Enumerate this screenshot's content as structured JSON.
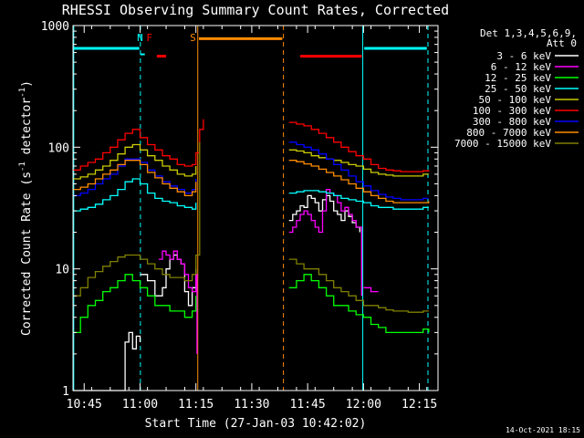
{
  "chart_data": {
    "type": "line",
    "title": "RHESSI Observing Summary Count Rates, Corrected",
    "xlabel": "Start Time (27-Jan-03 10:42:02)",
    "ylabel": "Corrected Count Rate (s⁻¹ detector⁻¹)",
    "ylabel_parts": [
      "Corrected Count Rate (s",
      "-1",
      " detector",
      "-1",
      ")"
    ],
    "y_scale": "log",
    "ylim": [
      1,
      1000
    ],
    "x_units": "minutes after 10:42:02",
    "xlim": [
      0,
      98
    ],
    "x_ticks": [
      {
        "value": 3,
        "label": "10:45"
      },
      {
        "value": 18,
        "label": "11:00"
      },
      {
        "value": 33,
        "label": "11:15"
      },
      {
        "value": 48,
        "label": "11:30"
      },
      {
        "value": 63,
        "label": "11:45"
      },
      {
        "value": 78,
        "label": "12:00"
      },
      {
        "value": 93,
        "label": "12:15"
      }
    ],
    "y_ticks": [
      {
        "value": 1,
        "label": "1"
      },
      {
        "value": 10,
        "label": "10"
      },
      {
        "value": 100,
        "label": "100"
      },
      {
        "value": 1000,
        "label": "1000"
      }
    ],
    "legend_header": [
      "Det 1,3,4,5,6,9,",
      "Att 0"
    ],
    "legend_placement": "right",
    "timestamp": "14-Oct-2021 18:15",
    "markers": [
      {
        "label": "N",
        "x": 18,
        "color": "#00ffff"
      },
      {
        "label": "F",
        "x": 20.5,
        "color": "#ff0000"
      },
      {
        "label": "S",
        "x": 32.2,
        "color": "#ff8c00"
      }
    ],
    "vertical_lines": [
      {
        "x": 0.2,
        "color": "#00ffff",
        "style": "solid"
      },
      {
        "x": 18.1,
        "color": "#00ffff",
        "style": "dashed"
      },
      {
        "x": 33.5,
        "color": "#ff8c00",
        "style": "solid"
      },
      {
        "x": 56.5,
        "color": "#ff8c00",
        "style": "dashed"
      },
      {
        "x": 77.8,
        "color": "#00ffff",
        "style": "solid"
      },
      {
        "x": 95.3,
        "color": "#00ffff",
        "style": "dashed"
      }
    ],
    "flag_bars": [
      {
        "x": [
          0.2,
          17.8
        ],
        "y": 650,
        "color": "#00ffff"
      },
      {
        "x": 18.3,
        "y": 580,
        "color": "#00ffff"
      },
      {
        "x": [
          22.5,
          25.0
        ],
        "y": 560,
        "color": "#ff0000"
      },
      {
        "x": [
          33.8,
          56.2
        ],
        "y": 780,
        "color": "#ff8c00"
      },
      {
        "x": [
          61.0,
          77.5
        ],
        "y": 560,
        "color": "#ff0000"
      },
      {
        "x": [
          78.2,
          95.0
        ],
        "y": 650,
        "color": "#00ffff"
      }
    ],
    "series": [
      {
        "name": "3 - 6 keV",
        "color": "#ffffff",
        "segments": [
          {
            "x": [
              0,
              13,
              14,
              15,
              16,
              17,
              18
            ],
            "y": [
              1,
              1,
              2.5,
              3,
              2.2,
              2.8,
              2.5
            ]
          },
          {
            "x": [
              18,
              20,
              22,
              24,
              25,
              26,
              27,
              28,
              29,
              30,
              31,
              32,
              33
            ],
            "y": [
              9,
              8,
              6,
              7,
              10,
              12,
              13,
              12,
              11,
              6.5,
              5,
              7,
              10
            ]
          },
          {
            "x": [
              58,
              59,
              60,
              61,
              62,
              63,
              64,
              65,
              66,
              67,
              68,
              69,
              70,
              71,
              72,
              73,
              74,
              75,
              76,
              77
            ],
            "y": [
              25,
              28,
              30,
              33,
              32,
              40,
              38,
              35,
              30,
              37,
              40,
              36,
              30,
              28,
              25,
              30,
              27,
              24,
              22,
              20
            ]
          }
        ]
      },
      {
        "name": "6 - 12 keV",
        "color": "#ff00ff",
        "segments": [
          {
            "x": [
              23,
              24,
              25,
              26,
              27,
              28,
              29,
              30,
              31,
              32,
              33,
              33.3
            ],
            "y": [
              12,
              14,
              13,
              12,
              14,
              12,
              11,
              9,
              7,
              6.5,
              9,
              2
            ]
          },
          {
            "x": [
              58,
              59,
              60,
              61,
              62,
              63,
              64,
              65,
              66,
              67,
              68,
              69,
              70,
              71,
              72,
              73,
              74,
              75,
              76,
              77,
              77.5
            ],
            "y": [
              20,
              22,
              25,
              28,
              30,
              28,
              25,
              22,
              20,
              30,
              45,
              42,
              40,
              35,
              30,
              32,
              28,
              25,
              22,
              22,
              6
            ]
          },
          {
            "x": [
              78,
              80,
              82
            ],
            "y": [
              7,
              6.5,
              6.5
            ]
          }
        ]
      },
      {
        "name": "12 - 25 keV",
        "color": "#00ff00",
        "segments": [
          {
            "x": [
              0,
              2,
              4,
              6,
              8,
              10,
              12,
              14,
              16,
              18,
              20,
              22,
              24,
              26,
              28,
              30,
              32,
              33
            ],
            "y": [
              3,
              4,
              5,
              5.5,
              6.5,
              7,
              8,
              9,
              8,
              7,
              6,
              5,
              5,
              4.5,
              4.5,
              4,
              4.5,
              6
            ]
          },
          {
            "x": [
              58,
              60,
              62,
              64,
              66,
              68,
              70,
              72,
              74,
              76,
              78,
              80,
              82,
              84,
              86,
              88,
              90,
              92,
              94,
              95.5
            ],
            "y": [
              7,
              8,
              9,
              8,
              7,
              6,
              5,
              5,
              4.5,
              4.2,
              4,
              3.5,
              3.3,
              3,
              3,
              3,
              3,
              3,
              3.2,
              3
            ]
          }
        ]
      },
      {
        "name": "25 - 50 keV",
        "color": "#00ffff",
        "segments": [
          {
            "x": [
              0,
              2,
              4,
              6,
              8,
              10,
              12,
              14,
              16,
              18,
              20,
              22,
              24,
              26,
              28,
              30,
              32,
              33
            ],
            "y": [
              30,
              31,
              32,
              34,
              37,
              40,
              45,
              52,
              55,
              50,
              42,
              38,
              36,
              35,
              33,
              32,
              31,
              35
            ]
          },
          {
            "x": [
              58,
              60,
              62,
              64,
              66,
              68,
              70,
              72,
              74,
              76,
              78,
              80,
              82,
              84,
              86,
              88,
              90,
              92,
              94,
              95.5
            ],
            "y": [
              42,
              43,
              44,
              44,
              43,
              42,
              40,
              38,
              37,
              36,
              35,
              33,
              32,
              32,
              31,
              31,
              31,
              31,
              32,
              32
            ]
          }
        ]
      },
      {
        "name": "50 - 100 keV",
        "color": "#cccc00",
        "segments": [
          {
            "x": [
              0,
              2,
              4,
              6,
              8,
              10,
              12,
              14,
              16,
              18,
              20,
              22,
              24,
              26,
              28,
              30,
              32,
              33
            ],
            "y": [
              55,
              57,
              60,
              65,
              70,
              78,
              88,
              100,
              105,
              95,
              85,
              78,
              70,
              65,
              60,
              58,
              60,
              70
            ]
          },
          {
            "x": [
              58,
              60,
              62,
              64,
              66,
              68,
              70,
              72,
              74,
              76,
              78,
              80,
              82,
              84,
              86,
              88,
              90,
              92,
              94,
              95.5
            ],
            "y": [
              95,
              93,
              90,
              85,
              82,
              80,
              78,
              75,
              72,
              70,
              66,
              62,
              60,
              59,
              58,
              58,
              58,
              58,
              60,
              60
            ]
          }
        ]
      },
      {
        "name": "100 - 300 keV",
        "color": "#ff0000",
        "segments": [
          {
            "x": [
              0,
              2,
              4,
              6,
              8,
              10,
              12,
              14,
              16,
              18,
              20,
              22,
              24,
              26,
              28,
              30,
              32,
              33,
              34,
              35
            ],
            "y": [
              65,
              70,
              75,
              80,
              90,
              100,
              115,
              130,
              140,
              120,
              105,
              95,
              85,
              80,
              72,
              70,
              72,
              90,
              140,
              170
            ]
          },
          {
            "x": [
              58,
              60,
              62,
              64,
              66,
              68,
              70,
              72,
              74,
              76,
              78,
              80,
              82,
              84,
              86,
              88,
              90,
              92,
              94,
              95.5
            ],
            "y": [
              160,
              155,
              150,
              140,
              130,
              120,
              110,
              100,
              92,
              85,
              80,
              72,
              67,
              65,
              64,
              63,
              63,
              63,
              64,
              65
            ]
          }
        ]
      },
      {
        "name": "300 - 800 keV",
        "color": "#0000ff",
        "segments": [
          {
            "x": [
              0,
              2,
              4,
              6,
              8,
              10,
              12,
              14,
              16,
              18,
              20,
              22,
              24,
              26,
              28,
              30,
              32,
              33
            ],
            "y": [
              40,
              42,
              45,
              50,
              55,
              60,
              70,
              80,
              80,
              75,
              65,
              58,
              52,
              48,
              45,
              42,
              45,
              55
            ]
          },
          {
            "x": [
              58,
              60,
              62,
              64,
              66,
              68,
              70,
              72,
              74,
              76,
              78,
              80,
              82,
              84,
              86,
              88,
              90,
              92,
              94,
              95.5
            ],
            "y": [
              110,
              105,
              100,
              95,
              88,
              80,
              72,
              65,
              58,
              52,
              48,
              44,
              41,
              39,
              38,
              37,
              37,
              37,
              38,
              38
            ]
          }
        ]
      },
      {
        "name": "800 - 7000 keV",
        "color": "#ff8c00",
        "segments": [
          {
            "x": [
              0,
              2,
              4,
              6,
              8,
              10,
              12,
              14,
              16,
              18,
              20,
              22,
              24,
              26,
              28,
              30,
              32,
              33
            ],
            "y": [
              45,
              47,
              50,
              55,
              60,
              65,
              72,
              78,
              78,
              72,
              62,
              56,
              50,
              46,
              43,
              40,
              43,
              52
            ]
          },
          {
            "x": [
              58,
              60,
              62,
              64,
              66,
              68,
              70,
              72,
              74,
              76,
              78,
              80,
              82,
              84,
              86,
              88,
              90,
              92,
              94,
              95.5
            ],
            "y": [
              78,
              76,
              73,
              70,
              66,
              62,
              58,
              54,
              50,
              46,
              43,
              40,
              38,
              36,
              35,
              35,
              35,
              35,
              35,
              36
            ]
          }
        ]
      },
      {
        "name": "7000 - 15000 keV",
        "color": "#808000",
        "segments": [
          {
            "x": [
              0,
              2,
              4,
              6,
              8,
              10,
              12,
              14,
              16,
              18,
              20,
              22,
              24,
              26,
              28,
              30,
              32,
              33,
              34
            ],
            "y": [
              6,
              7,
              8.5,
              9.5,
              10.5,
              11.5,
              12.5,
              13,
              13,
              12,
              11,
              10,
              9,
              8.5,
              8.5,
              8,
              9,
              13,
              110
            ]
          },
          {
            "x": [
              58,
              60,
              62,
              64,
              66,
              68,
              70,
              72,
              74,
              76,
              78,
              80,
              82,
              84,
              86,
              88,
              90,
              92,
              94,
              95.5
            ],
            "y": [
              12,
              11,
              10,
              10,
              9,
              8,
              7,
              6.5,
              6,
              5.5,
              5,
              5,
              4.8,
              4.6,
              4.5,
              4.5,
              4.4,
              4.4,
              4.5,
              4.5
            ]
          }
        ]
      }
    ]
  }
}
